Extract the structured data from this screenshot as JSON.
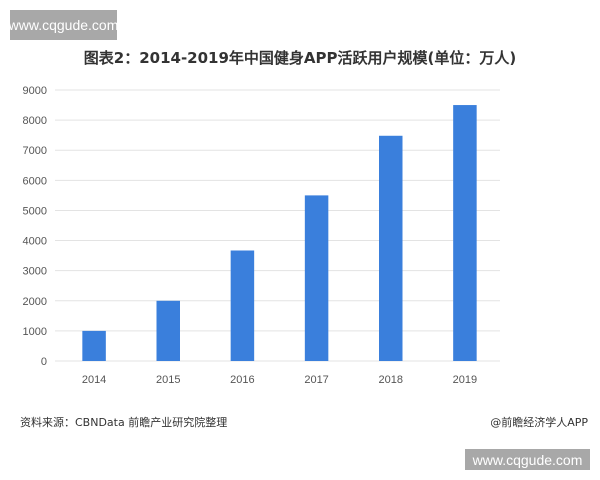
{
  "watermark_text": "www.cqgude.com",
  "chart_data": {
    "type": "bar",
    "title": "图表2：2014-2019年中国健身APP活跃用户规模(单位：万人)",
    "categories": [
      "2014",
      "2015",
      "2016",
      "2017",
      "2018",
      "2019"
    ],
    "values": [
      1000,
      2000,
      3670,
      5500,
      7480,
      8500
    ],
    "ylim": [
      0,
      9000
    ],
    "yticks": [
      0,
      1000,
      2000,
      3000,
      4000,
      5000,
      6000,
      7000,
      8000,
      9000
    ],
    "grid": true,
    "bar_color": "#3a7fdc",
    "grid_color": "#e3e3e3"
  },
  "footer": {
    "source": "资料来源：CBNData 前瞻产业研究院整理",
    "credit": "@前瞻经济学人APP"
  }
}
